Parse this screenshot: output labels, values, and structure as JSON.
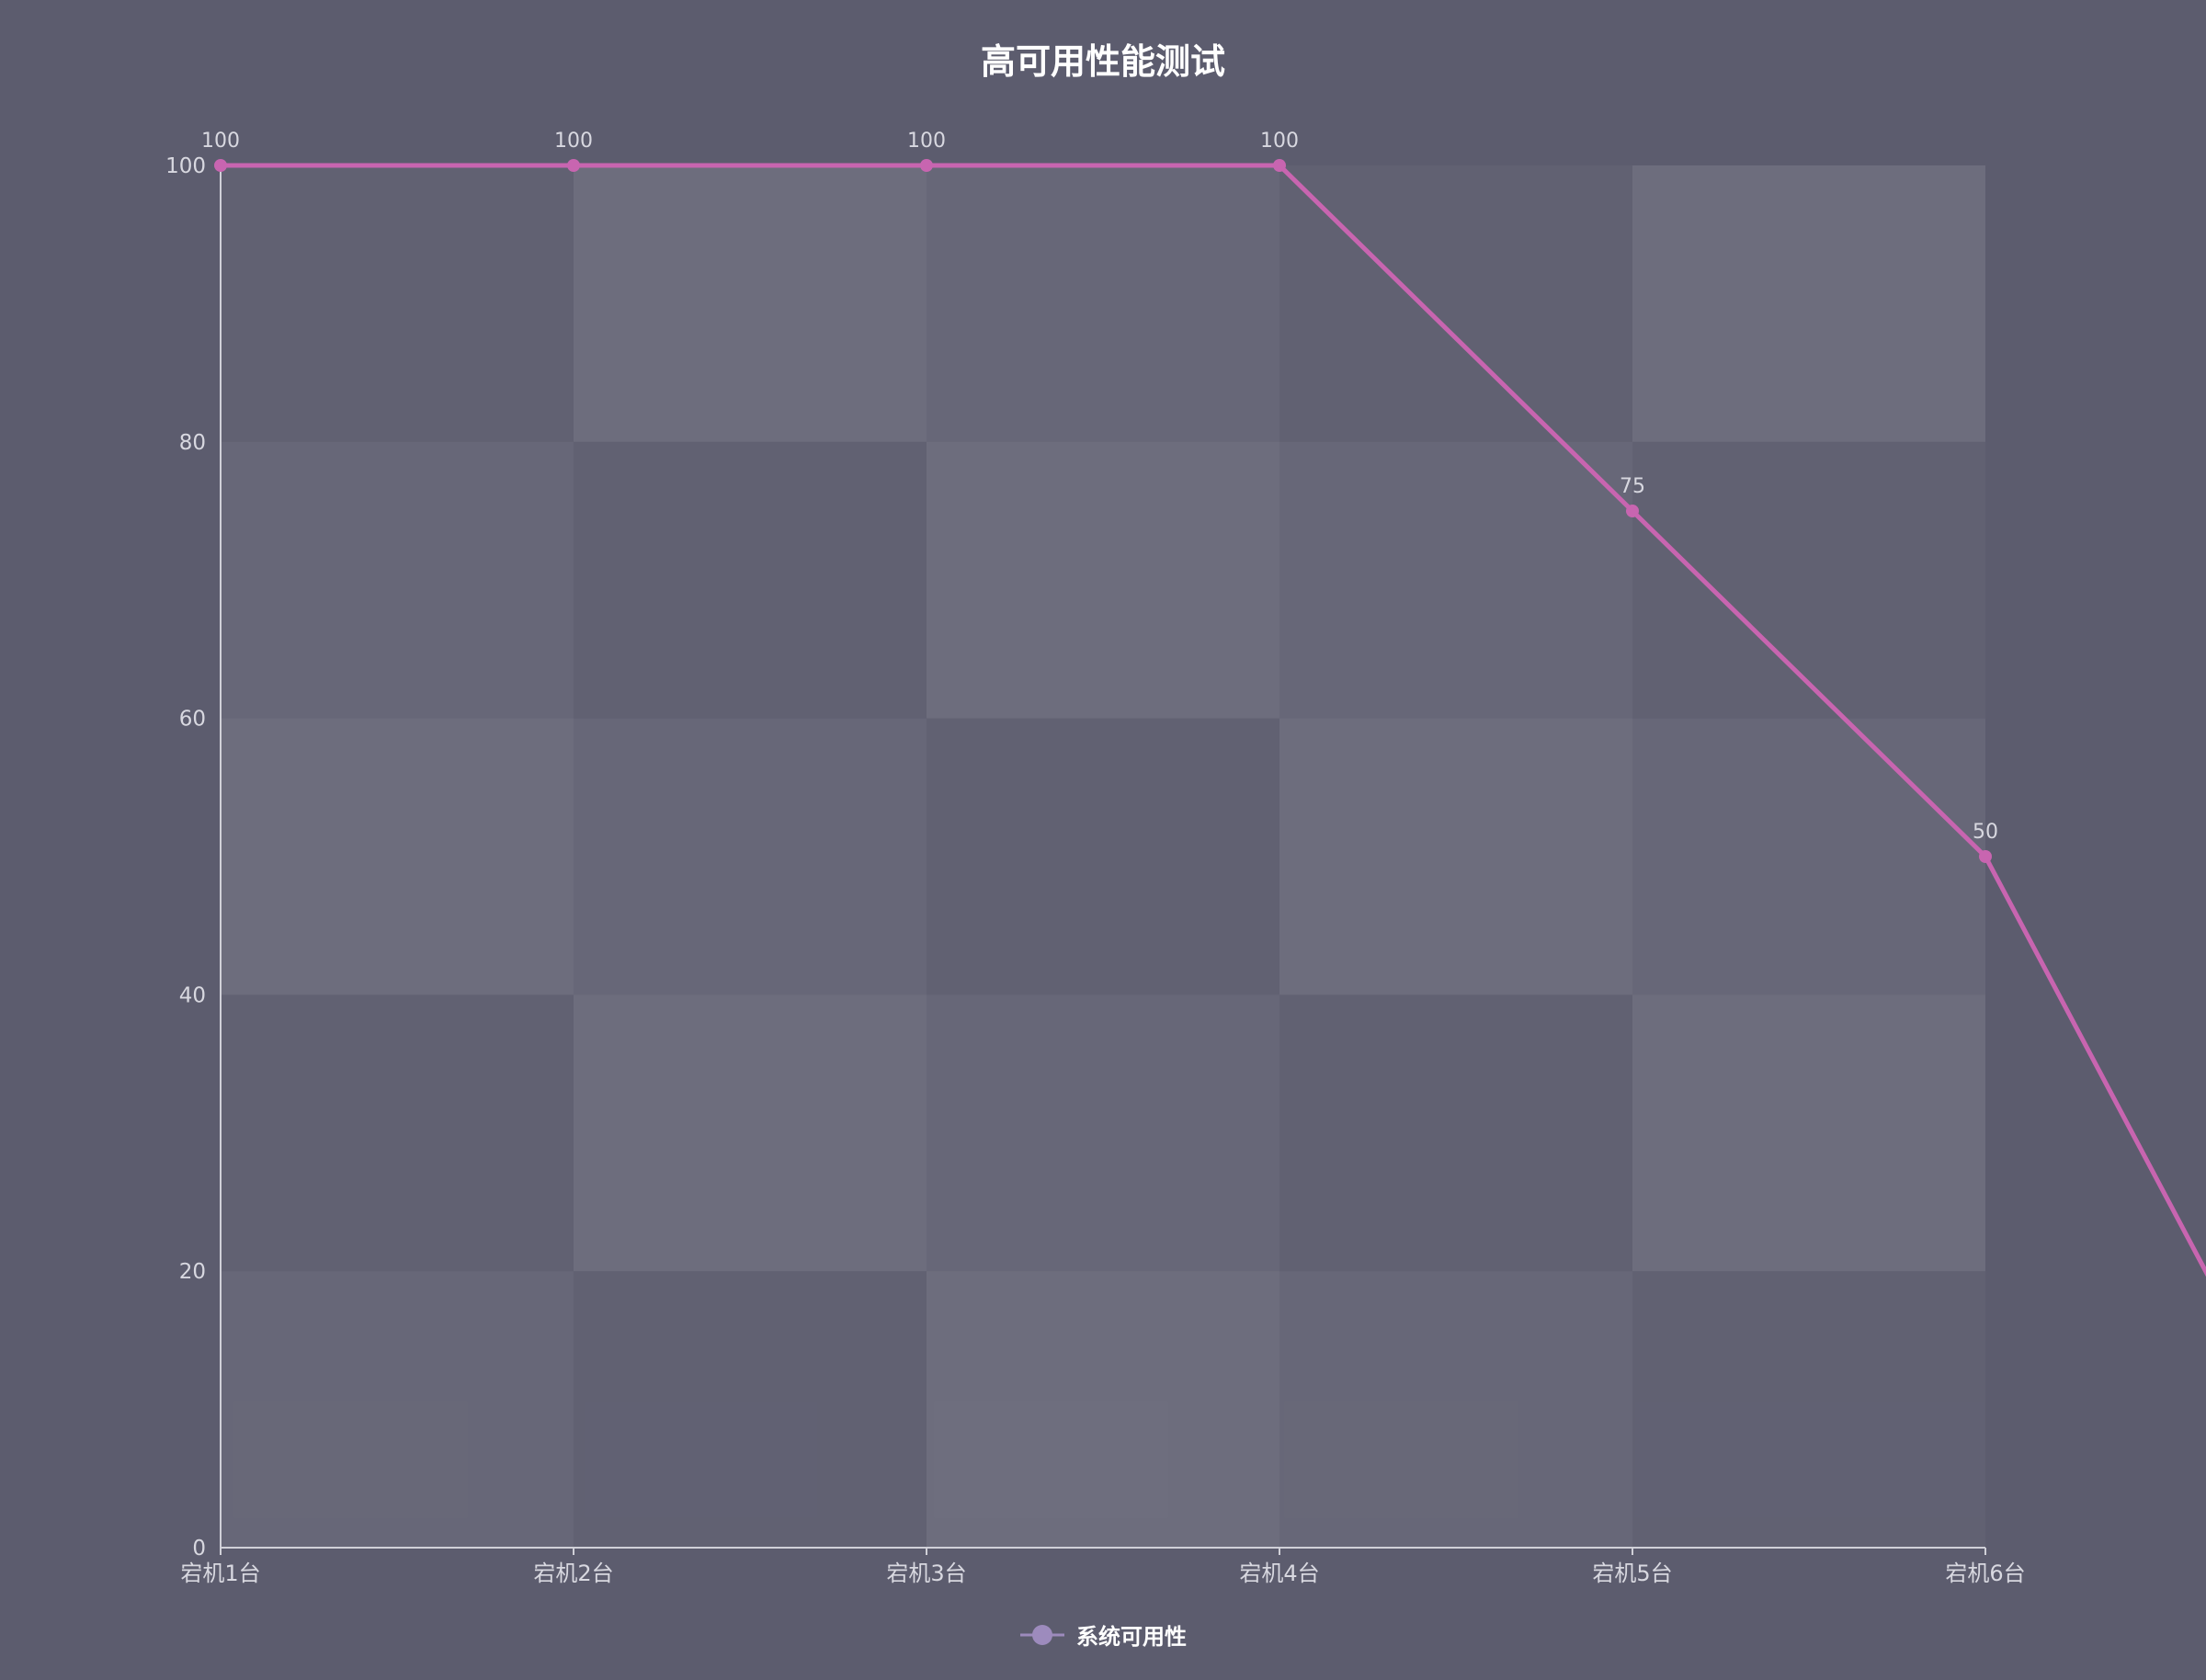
{
  "colors": {
    "background": "#5c5c6e",
    "series_line": "#c865b0",
    "legend_marker": "#9d8bbd",
    "axis": "#d0d0d8",
    "text": "#ffffff",
    "tick_text": "#d8d8e0"
  },
  "chart_data": {
    "type": "line",
    "title": "高可用性能测试",
    "xlabel": "",
    "ylabel": "",
    "categories": [
      "宕机1台",
      "宕机2台",
      "宕机3台",
      "宕机4台",
      "宕机5台",
      "宕机6台"
    ],
    "series": [
      {
        "name": "系统可用性",
        "values": [
          100,
          100,
          100,
          100,
          75,
          50
        ],
        "data_labels": [
          "100",
          "100",
          "100",
          "100",
          "75",
          "50"
        ]
      }
    ],
    "ylim": [
      0,
      100
    ],
    "yticks": [
      "0",
      "20",
      "40",
      "60",
      "80",
      "100"
    ],
    "grid": true,
    "legend": "bottom-center",
    "line_extends_past_last_category": true
  }
}
